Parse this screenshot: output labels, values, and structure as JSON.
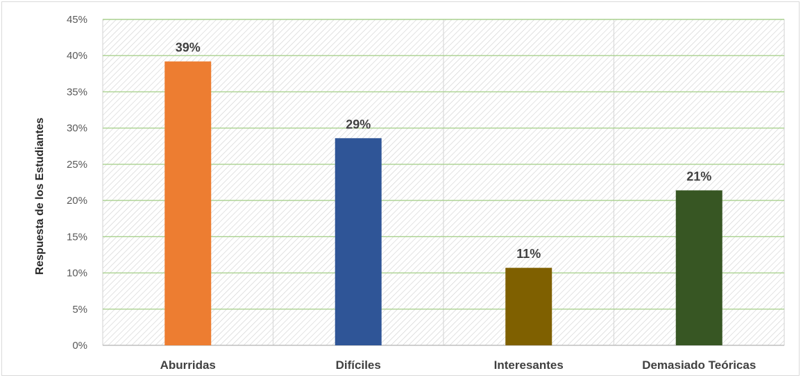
{
  "chart_data": {
    "type": "bar",
    "title": "",
    "xlabel": "",
    "ylabel": "Respuesta de los Estudiantes",
    "categories": [
      "Aburridas",
      "Difíciles",
      "Interesantes",
      "Demasiado Teóricas"
    ],
    "values": [
      39.2,
      28.6,
      10.7,
      21.4
    ],
    "data_labels": [
      "39%",
      "29%",
      "11%",
      "21%"
    ],
    "bar_colors": [
      "#ED7D31",
      "#2F5597",
      "#7F6000",
      "#375623"
    ],
    "ylim": [
      0,
      45
    ],
    "y_ticks": [
      0,
      5,
      10,
      15,
      20,
      25,
      30,
      35,
      40,
      45
    ],
    "y_tick_labels": [
      "0%",
      "5%",
      "10%",
      "15%",
      "20%",
      "25%",
      "30%",
      "35%",
      "40%",
      "45%"
    ],
    "grid": true,
    "grid_color": "#A9D18E",
    "plot_background": "hatched",
    "legend": "none"
  }
}
